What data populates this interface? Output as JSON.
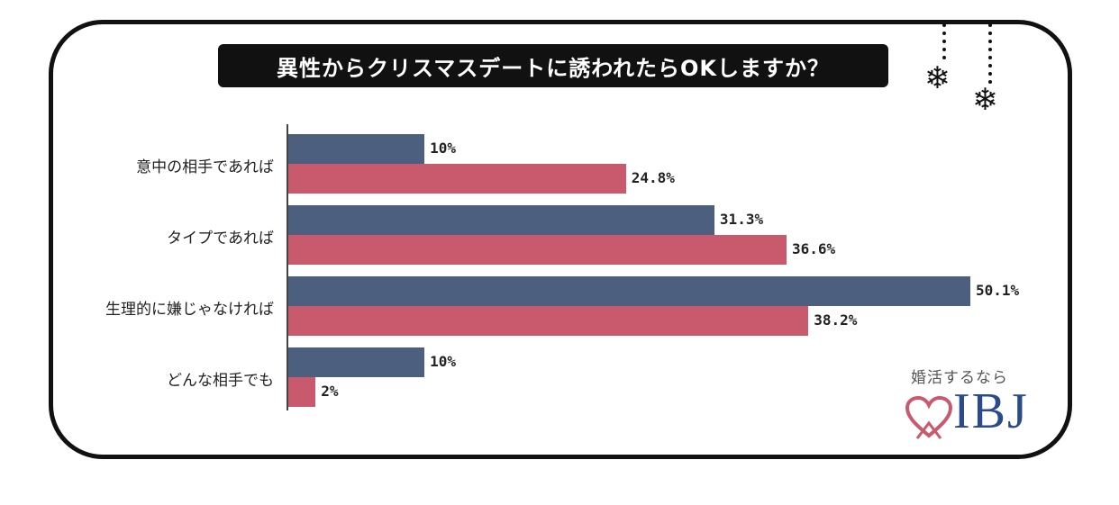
{
  "title": "異性からクリスマスデートに誘われたらOKしますか？",
  "colors": {
    "male": "#4d5f7e",
    "female": "#c9596c",
    "frame": "#111111"
  },
  "logo": {
    "tagline": "婚活するなら",
    "brand": "IBJ"
  },
  "decoration": [
    "snowflake-icon",
    "snowflake-icon"
  ],
  "chart_data": {
    "type": "bar",
    "orientation": "horizontal",
    "categories": [
      "意中の相手であれば",
      "タイプであれば",
      "生理的に嫌じゃなければ",
      "どんな相手でも"
    ],
    "series": [
      {
        "values": [
          10,
          31.3,
          50.1,
          10
        ],
        "labels": [
          "10%",
          "31.3%",
          "50.1%",
          "10%"
        ]
      },
      {
        "values": [
          24.8,
          36.6,
          38.2,
          2
        ],
        "labels": [
          "24.8%",
          "36.6%",
          "38.2%",
          "2%"
        ]
      }
    ],
    "xlim": [
      0,
      50.1
    ],
    "grid": false,
    "legend": false
  }
}
